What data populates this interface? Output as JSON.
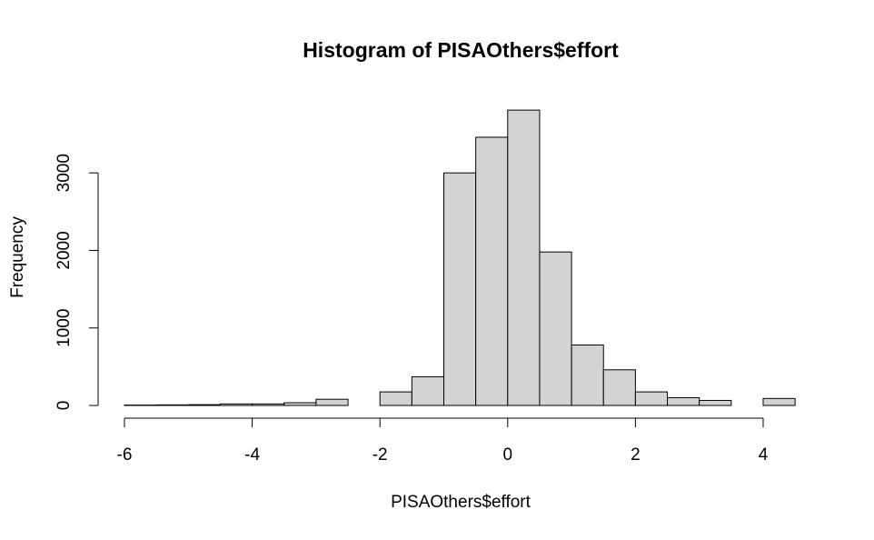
{
  "chart_data": {
    "type": "bar",
    "title": "Histogram of PISAOthers$effort",
    "xlabel": "PISAOthers$effort",
    "ylabel": "Frequency",
    "bin_width": 0.5,
    "bins": [
      {
        "x0": -6.0,
        "x1": -5.5,
        "count": 5
      },
      {
        "x0": -5.5,
        "x1": -5.0,
        "count": 8
      },
      {
        "x0": -5.0,
        "x1": -4.5,
        "count": 10
      },
      {
        "x0": -4.5,
        "x1": -4.0,
        "count": 20
      },
      {
        "x0": -4.0,
        "x1": -3.5,
        "count": 20
      },
      {
        "x0": -3.5,
        "x1": -3.0,
        "count": 35
      },
      {
        "x0": -3.0,
        "x1": -2.5,
        "count": 80
      },
      {
        "x0": -2.5,
        "x1": -2.0,
        "count": 0
      },
      {
        "x0": -2.0,
        "x1": -1.5,
        "count": 175
      },
      {
        "x0": -1.5,
        "x1": -1.0,
        "count": 370
      },
      {
        "x0": -1.0,
        "x1": -0.5,
        "count": 3000
      },
      {
        "x0": -0.5,
        "x1": 0.0,
        "count": 3460
      },
      {
        "x0": 0.0,
        "x1": 0.5,
        "count": 3810
      },
      {
        "x0": 0.5,
        "x1": 1.0,
        "count": 1980
      },
      {
        "x0": 1.0,
        "x1": 1.5,
        "count": 780
      },
      {
        "x0": 1.5,
        "x1": 2.0,
        "count": 460
      },
      {
        "x0": 2.0,
        "x1": 2.5,
        "count": 175
      },
      {
        "x0": 2.5,
        "x1": 3.0,
        "count": 100
      },
      {
        "x0": 3.0,
        "x1": 3.5,
        "count": 65
      },
      {
        "x0": 3.5,
        "x1": 4.0,
        "count": 0
      },
      {
        "x0": 4.0,
        "x1": 4.5,
        "count": 90
      }
    ],
    "xlim": [
      -6,
      4.5
    ],
    "ylim": [
      0,
      3810
    ],
    "x_ticks": [
      -6,
      -4,
      -2,
      0,
      2,
      4
    ],
    "x_tick_labels": [
      "-6",
      "-4",
      "-2",
      "0",
      "2",
      "4"
    ],
    "y_ticks": [
      0,
      1000,
      2000,
      3000
    ],
    "y_tick_labels": [
      "0",
      "1000",
      "2000",
      "3000"
    ],
    "bar_color": "#d3d3d3",
    "edge_color": "#000000",
    "grid": false,
    "legend": "none"
  }
}
